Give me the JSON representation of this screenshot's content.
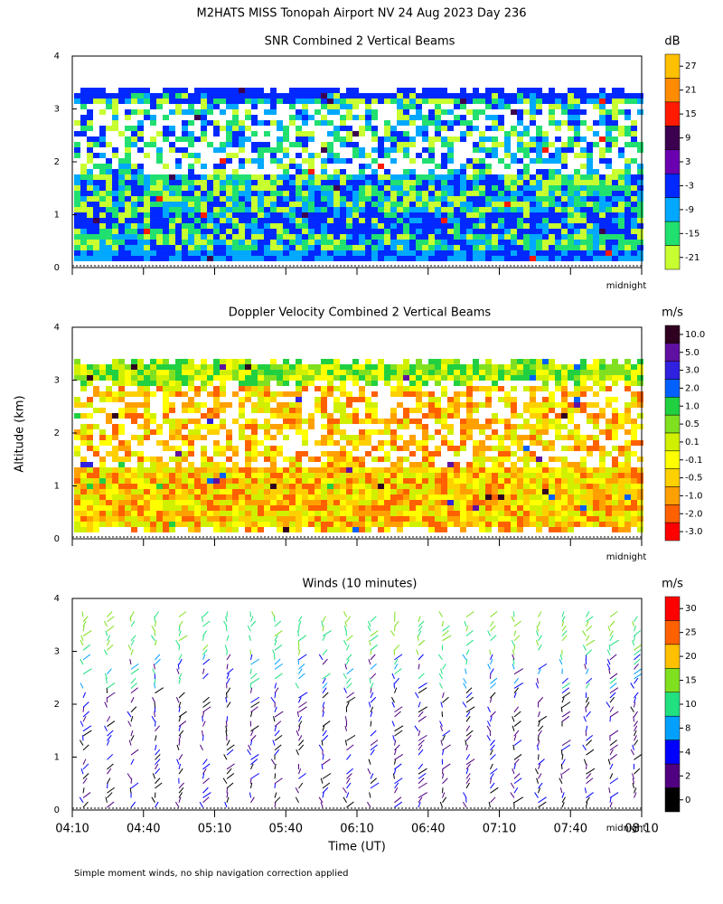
{
  "title": "M2HATS MISS Tonopah Airport NV  24 Aug 2023 Day 236",
  "y_label": "Altitude (km)",
  "x_label": "Time (UT)",
  "xticks": [
    "04:10",
    "04:40",
    "05:10",
    "05:40",
    "06:10",
    "06:40",
    "07:10",
    "07:40",
    "08:10"
  ],
  "marker": "midnight",
  "footnote": "Simple moment winds, no ship navigation correction applied",
  "chart_data": [
    {
      "type": "heatmap",
      "title": "SNR Combined 2 Vertical Beams",
      "unit": "dB",
      "ylim": [
        0,
        4
      ],
      "yticks": [
        0,
        1,
        2,
        3,
        4
      ],
      "colorbar": {
        "colors": [
          "#ffc000",
          "#ff8c00",
          "#ff1a00",
          "#3c0050",
          "#6a00b0",
          "#0028ff",
          "#00a8ff",
          "#20e070",
          "#c8ff30"
        ],
        "ticks": [
          27,
          21,
          15,
          9,
          3,
          -3,
          -9,
          -15,
          -21
        ]
      }
    },
    {
      "type": "heatmap",
      "title": "Doppler Velocity Combined 2 Vertical Beams",
      "unit": "m/s",
      "ylim": [
        0,
        4
      ],
      "yticks": [
        0,
        1,
        2,
        3,
        4
      ],
      "colorbar": {
        "colors": [
          "#300020",
          "#6010a0",
          "#3020e0",
          "#0060ff",
          "#20d040",
          "#80e020",
          "#d0f000",
          "#ffff00",
          "#ffd000",
          "#ffa000",
          "#ff6000",
          "#ff0000"
        ],
        "ticks": [
          {
            "value": 10,
            "label": "10.0"
          },
          {
            "value": 5,
            "label": "5.0"
          },
          {
            "value": 3,
            "label": "3.0"
          },
          {
            "value": 2,
            "label": "2.0"
          },
          {
            "value": 1,
            "label": "1.0"
          },
          0.5,
          0.1,
          -0.1,
          -0.5,
          {
            "value": -1,
            "label": "-1.0"
          },
          {
            "value": -2,
            "label": "-2.0"
          },
          {
            "value": -3,
            "label": "-3.0"
          }
        ]
      }
    },
    {
      "type": "barbs",
      "title": "Winds (10 minutes)",
      "unit": "m/s",
      "ylim": [
        0,
        4
      ],
      "yticks": [
        0,
        1,
        2,
        3,
        4
      ],
      "colorbar": {
        "colors": [
          "#ff0000",
          "#ff6000",
          "#ffc000",
          "#80e020",
          "#20e080",
          "#00a0ff",
          "#0000ff",
          "#500080",
          "#000000"
        ],
        "ticks": [
          30,
          25,
          20,
          15,
          10,
          8,
          4,
          2,
          0
        ]
      }
    }
  ]
}
